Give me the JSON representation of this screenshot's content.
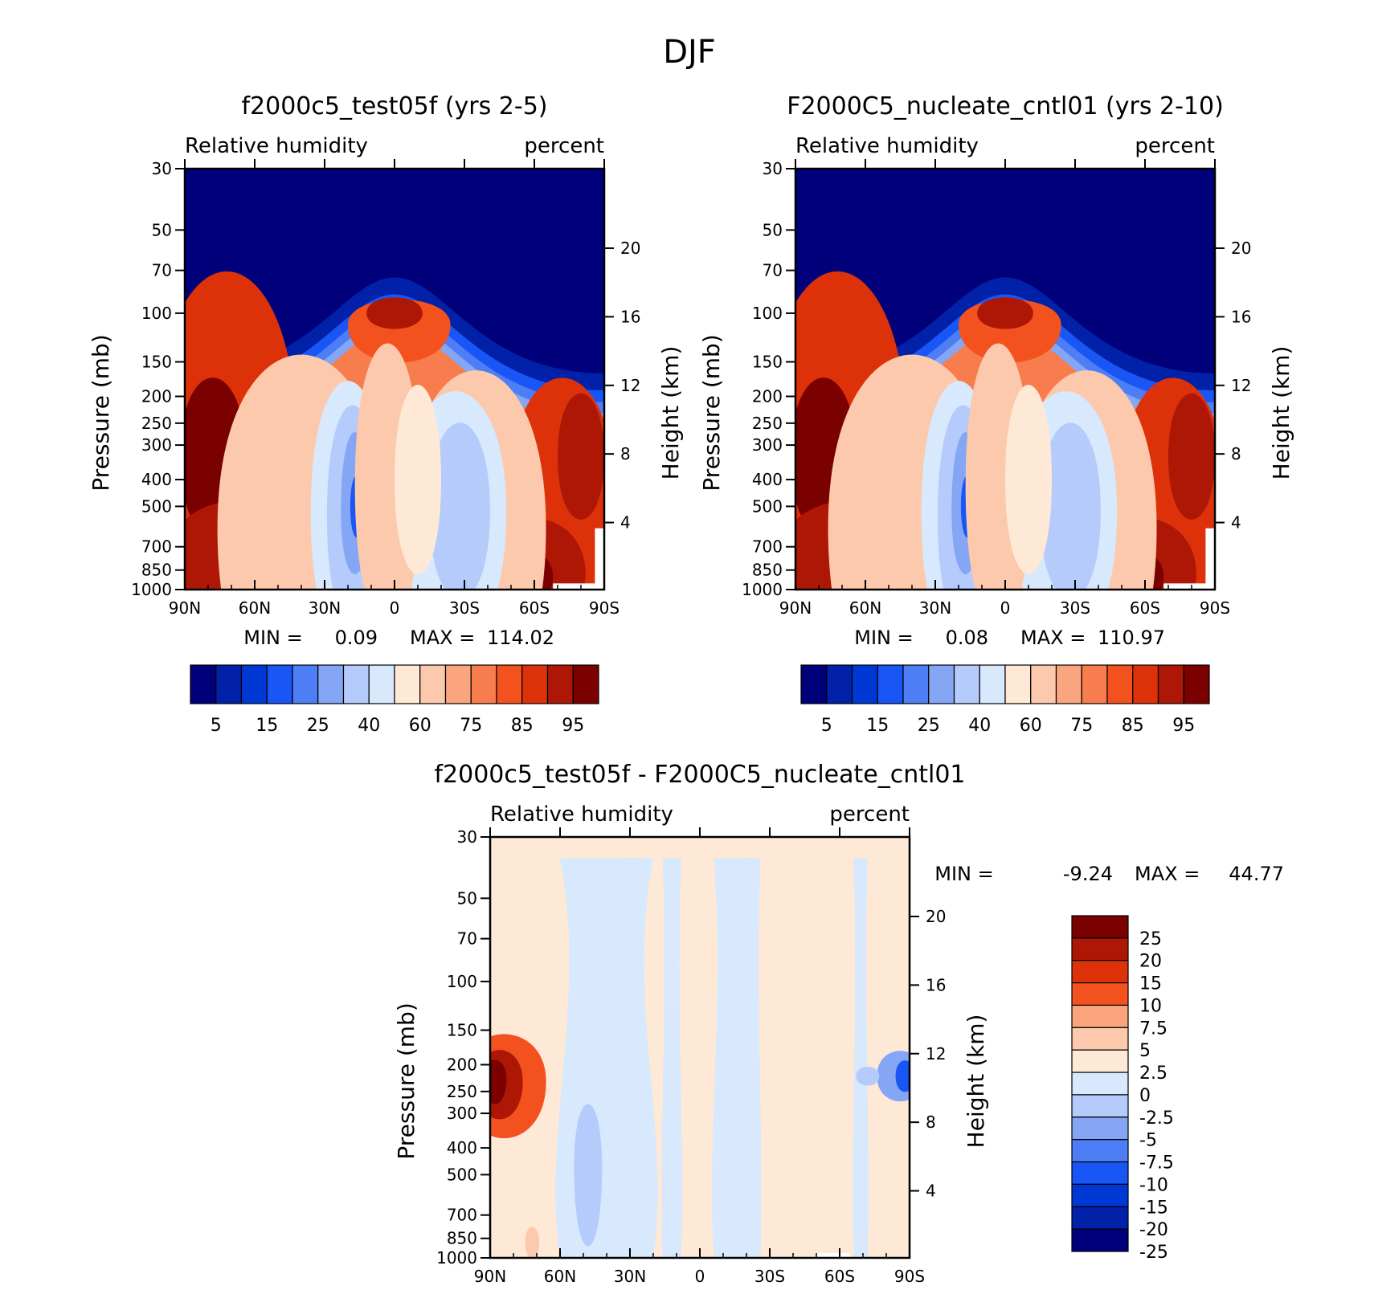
{
  "figure_title": "DJF",
  "chart_data": [
    {
      "type": "heatmap",
      "id": "panel-a",
      "title": "f2000c5_test05f (yrs 2-5)",
      "variable": "Relative humidity",
      "units": "percent",
      "ylabel": "Pressure (mb)",
      "ylabel_right": "Height (km)",
      "x_ticks": [
        "90N",
        "60N",
        "30N",
        "0",
        "30S",
        "60S",
        "90S"
      ],
      "y_ticks": [
        30,
        50,
        70,
        100,
        150,
        200,
        250,
        300,
        400,
        500,
        700,
        850,
        1000
      ],
      "height_ticks": [
        20,
        16,
        12,
        8,
        4
      ],
      "ylim": [
        1000,
        30
      ],
      "min_label": "MIN =",
      "min_value": "0.09",
      "max_label": "MAX =",
      "max_value": "114.02",
      "colorbar_labels": [
        "5",
        "15",
        "25",
        "40",
        "60",
        "75",
        "85",
        "95"
      ],
      "colors": [
        "#00007a",
        "#0021a8",
        "#0038d6",
        "#1a55f5",
        "#4d7ef5",
        "#85a6f5",
        "#b4cbfb",
        "#d8e8fd",
        "#fee9d6",
        "#fcc9ac",
        "#fba57e",
        "#f77d4e",
        "#f3521f",
        "#dd3209",
        "#ae1706",
        "#7b0000"
      ]
    },
    {
      "type": "heatmap",
      "id": "panel-b",
      "title": "F2000C5_nucleate_cntl01 (yrs 2-10)",
      "variable": "Relative humidity",
      "units": "percent",
      "ylabel": "Pressure (mb)",
      "ylabel_right": "Height (km)",
      "x_ticks": [
        "90N",
        "60N",
        "30N",
        "0",
        "30S",
        "60S",
        "90S"
      ],
      "y_ticks": [
        30,
        50,
        70,
        100,
        150,
        200,
        250,
        300,
        400,
        500,
        700,
        850,
        1000
      ],
      "height_ticks": [
        20,
        16,
        12,
        8,
        4
      ],
      "ylim": [
        1000,
        30
      ],
      "min_label": "MIN =",
      "min_value": "0.08",
      "max_label": "MAX =",
      "max_value": "110.97",
      "colorbar_labels": [
        "5",
        "15",
        "25",
        "40",
        "60",
        "75",
        "85",
        "95"
      ],
      "colors": [
        "#00007a",
        "#0021a8",
        "#0038d6",
        "#1a55f5",
        "#4d7ef5",
        "#85a6f5",
        "#b4cbfb",
        "#d8e8fd",
        "#fee9d6",
        "#fcc9ac",
        "#fba57e",
        "#f77d4e",
        "#f3521f",
        "#dd3209",
        "#ae1706",
        "#7b0000"
      ]
    },
    {
      "type": "heatmap",
      "id": "panel-c",
      "title": "f2000c5_test05f - F2000C5_nucleate_cntl01",
      "variable": "Relative humidity",
      "units": "percent",
      "ylabel": "Pressure (mb)",
      "ylabel_right": "Height (km)",
      "x_ticks": [
        "90N",
        "60N",
        "30N",
        "0",
        "30S",
        "60S",
        "90S"
      ],
      "y_ticks": [
        30,
        50,
        70,
        100,
        150,
        200,
        250,
        300,
        400,
        500,
        700,
        850,
        1000
      ],
      "height_ticks": [
        20,
        16,
        12,
        8,
        4
      ],
      "ylim": [
        1000,
        30
      ],
      "min_label": "MIN =",
      "min_value": "-9.24",
      "max_label": "MAX =",
      "max_value": "44.77",
      "colorbar_labels": [
        "25",
        "20",
        "15",
        "10",
        "7.5",
        "5",
        "2.5",
        "0",
        "-2.5",
        "-5",
        "-7.5",
        "-10",
        "-15",
        "-20",
        "-25"
      ],
      "colors": [
        "#7b0000",
        "#ae1706",
        "#dd3209",
        "#f3521f",
        "#fba57e",
        "#fcc9ac",
        "#fee9d6",
        "#d8e8fd",
        "#b4cbfb",
        "#85a6f5",
        "#4d7ef5",
        "#1a55f5",
        "#0038d6",
        "#0021a8",
        "#00007a"
      ]
    }
  ]
}
